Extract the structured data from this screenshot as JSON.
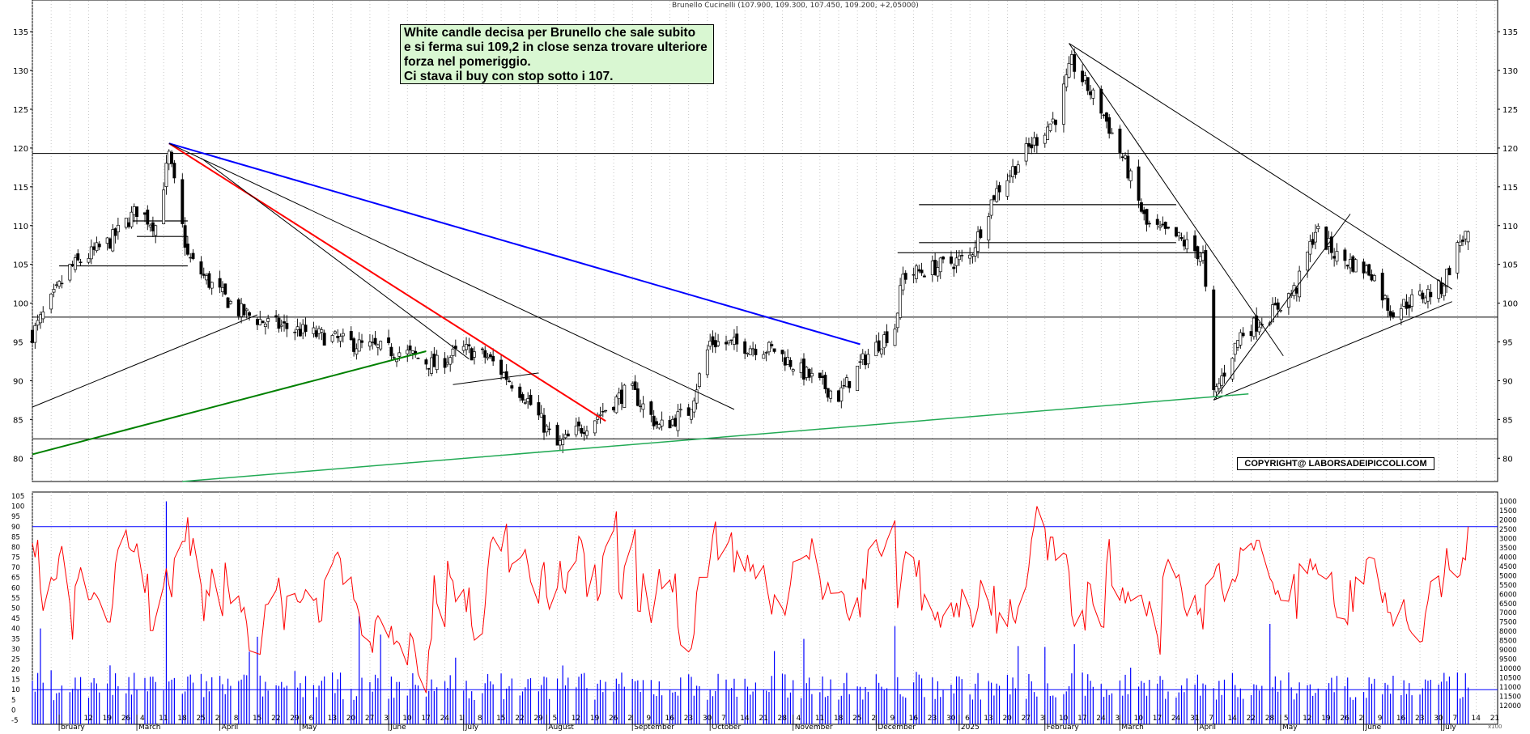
{
  "title": "Brunello Cucinelli (107.900, 109.300, 107.450, 109.200, +2,05000)",
  "annotation": {
    "lines": [
      "White candle decisa per Brunello che sale subito",
      "e si ferma sui 109,2 in close senza trovare ulteriore",
      "forza nel pomeriggio.",
      "Ci stava il buy con stop sotto i 107."
    ]
  },
  "copyright": "COPYRIGHT@ LABORSADEIPICCOLI.COM",
  "colors": {
    "background": "#ffffff",
    "grid": "#b8b8b8",
    "candle_up": "#ffffff",
    "candle_down": "#000000",
    "trend_red": "#ff0000",
    "trend_blue": "#0000ff",
    "trend_green": "#008000",
    "trend_green_light": "#22aa55",
    "oscillator": "#ff0000",
    "volume": "#0000ff",
    "annotation_bg": "#d9f7d2"
  },
  "chart_data": [
    {
      "type": "candlestick",
      "title": "Brunello Cucinelli (107.900, 109.300, 107.450, 109.200, +2,05000)",
      "ylim": [
        77,
        137
      ],
      "y_ticks": [
        80,
        85,
        90,
        95,
        100,
        105,
        110,
        115,
        120,
        125,
        130,
        135
      ],
      "grid": "vertical dotted per week",
      "last": {
        "open": 107.9,
        "high": 109.3,
        "low": 107.45,
        "close": 109.2,
        "change": 2.05
      },
      "horizontal_levels": [
        119.3,
        98.2,
        82.5
      ],
      "support_resistance_segments": [
        {
          "from": "2024-02-01",
          "to": "2024-03-20",
          "value": 104.8
        },
        {
          "from": "2024-03-01",
          "to": "2024-03-20",
          "value": 108.6
        },
        {
          "from": "2024-02-28",
          "to": "2024-03-20",
          "value": 110.6
        },
        {
          "from": "2024-12-10",
          "to": "2025-04-04",
          "value": 106.5
        },
        {
          "from": "2024-12-18",
          "to": "2025-03-24",
          "value": 107.8
        },
        {
          "from": "2024-12-18",
          "to": "2025-03-24",
          "value": 112.7
        }
      ],
      "trendlines": [
        {
          "color": "red",
          "from": [
            "2024-03-13",
            120.6
          ],
          "to": [
            "2024-08-23",
            84.8
          ]
        },
        {
          "color": "blue",
          "from": [
            "2024-03-13",
            120.6
          ],
          "to": [
            "2024-11-26",
            94.7
          ]
        },
        {
          "color": "black",
          "from": [
            "2024-03-13",
            120.6
          ],
          "to": [
            "2024-10-10",
            86.3
          ]
        },
        {
          "color": "black",
          "from": [
            "2024-03-25",
            118.7
          ],
          "to": [
            "2024-07-03",
            92.8
          ]
        },
        {
          "color": "black",
          "from": [
            "2024-01-22",
            86.6
          ],
          "to": [
            "2024-04-15",
            98.5
          ]
        },
        {
          "color": "black",
          "from": [
            "2024-06-27",
            89.5
          ],
          "to": [
            "2024-07-29",
            91.0
          ]
        },
        {
          "color": "black",
          "from": [
            "2025-02-12",
            133.5
          ],
          "to": [
            "2025-05-03",
            93.2
          ]
        },
        {
          "color": "black",
          "from": [
            "2025-02-12",
            133.5
          ],
          "to": [
            "2025-07-05",
            101.8
          ]
        },
        {
          "color": "black",
          "from": [
            "2025-04-07",
            87.5
          ],
          "to": [
            "2025-07-05",
            100.2
          ]
        },
        {
          "color": "black",
          "from": [
            "2025-04-07",
            87.5
          ],
          "to": [
            "2025-05-28",
            111.5
          ]
        },
        {
          "color": "green",
          "from": [
            "2024-01-22",
            80.5
          ],
          "to": [
            "2024-06-17",
            93.8
          ]
        },
        {
          "color": "green",
          "from": [
            "2024-03-18",
            77.0
          ],
          "to": [
            "2025-04-20",
            88.3
          ]
        }
      ]
    },
    {
      "type": "line",
      "name": "oscillator",
      "ylim": [
        -7,
        107
      ],
      "y_ticks": [
        -5,
        0,
        5,
        10,
        15,
        20,
        25,
        30,
        35,
        40,
        45,
        50,
        55,
        60,
        65,
        70,
        75,
        80,
        85,
        90,
        95,
        100,
        105
      ],
      "levels": [
        90,
        10
      ]
    },
    {
      "type": "bar",
      "name": "volume",
      "ylim": [
        0,
        12500
      ],
      "y_ticks": [
        1000,
        1500,
        2000,
        2500,
        3000,
        3500,
        4000,
        4500,
        5000,
        5500,
        6000,
        6500,
        7000,
        7500,
        8000,
        8500,
        9000,
        9500,
        10000,
        10500,
        11000,
        11500,
        12000
      ],
      "y_ticks_right": [
        "12000",
        "11500",
        "11000",
        "10500",
        "10000",
        "9500",
        "9000",
        "8500",
        "8000",
        "7500",
        "7000",
        "6500",
        "6000",
        "5500",
        "5000",
        "4500",
        "4000",
        "3500",
        "3000",
        "2500",
        "2000",
        "1500",
        "1000"
      ]
    }
  ],
  "x_axis": {
    "day_labels": [
      "12",
      "19",
      "26",
      "4",
      "11",
      "18",
      "25",
      "2",
      "8",
      "15",
      "22",
      "29",
      "6",
      "13",
      "20",
      "27",
      "3",
      "10",
      "17",
      "24",
      "1",
      "8",
      "15",
      "22",
      "29",
      "5",
      "12",
      "19",
      "26",
      "2",
      "9",
      "16",
      "23",
      "30",
      "7",
      "14",
      "21",
      "28",
      "4",
      "11",
      "18",
      "25",
      "2",
      "9",
      "16",
      "23",
      "30",
      "6",
      "13",
      "20",
      "27",
      "3",
      "10",
      "17",
      "24",
      "3",
      "10",
      "17",
      "24",
      "31",
      "7",
      "14",
      "22",
      "28",
      "5",
      "12",
      "19",
      "26",
      "2",
      "9",
      "16",
      "23",
      "30",
      "7",
      "14",
      "21"
    ],
    "month_labels": [
      {
        "label": "bruary",
        "date": "2024-02-01"
      },
      {
        "label": "March",
        "date": "2024-03-01"
      },
      {
        "label": "April",
        "date": "2024-04-01"
      },
      {
        "label": "May",
        "date": "2024-05-01"
      },
      {
        "label": "June",
        "date": "2024-06-03"
      },
      {
        "label": "July",
        "date": "2024-07-01"
      },
      {
        "label": "August",
        "date": "2024-08-01"
      },
      {
        "label": "September",
        "date": "2024-09-02"
      },
      {
        "label": "October",
        "date": "2024-10-01"
      },
      {
        "label": "November",
        "date": "2024-11-01"
      },
      {
        "label": "December",
        "date": "2024-12-02"
      },
      {
        "label": "2025",
        "date": "2025-01-02"
      },
      {
        "label": "February",
        "date": "2025-02-03"
      },
      {
        "label": "March",
        "date": "2025-03-03"
      },
      {
        "label": "April",
        "date": "2025-04-01"
      },
      {
        "label": "May",
        "date": "2025-05-02"
      },
      {
        "label": "June",
        "date": "2025-06-02"
      },
      {
        "label": "July",
        "date": "2025-07-01"
      }
    ],
    "unit_label": "x100"
  }
}
